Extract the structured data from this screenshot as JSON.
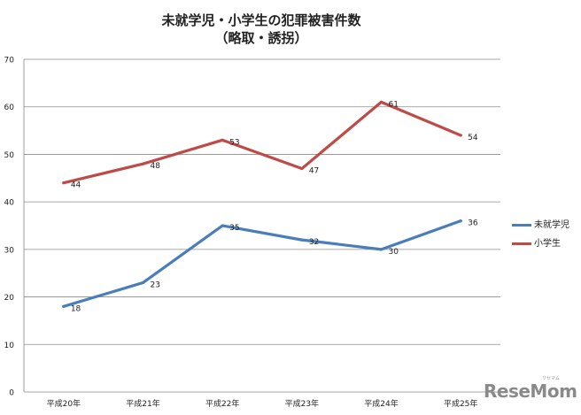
{
  "chart_data": {
    "type": "line",
    "title": "未就学児・小学生の犯罪被害件数",
    "subtitle": "（略取・誘拐）",
    "categories": [
      "平成20年",
      "平成21年",
      "平成22年",
      "平成23年",
      "平成24年",
      "平成25年"
    ],
    "series": [
      {
        "name": "未就学児",
        "color": "#4a7ebb",
        "values": [
          18,
          23,
          35,
          32,
          30,
          36
        ]
      },
      {
        "name": "小学生",
        "color": "#be4b48",
        "values": [
          44,
          48,
          53,
          47,
          61,
          54
        ]
      }
    ],
    "ylim": [
      0,
      70
    ],
    "yticks": [
      0,
      10,
      20,
      30,
      40,
      50,
      60,
      70
    ],
    "grid": true,
    "legend": "right",
    "xlabel": "",
    "ylabel": ""
  },
  "watermark": {
    "text": "ReseMom",
    "small": "リセマム"
  }
}
